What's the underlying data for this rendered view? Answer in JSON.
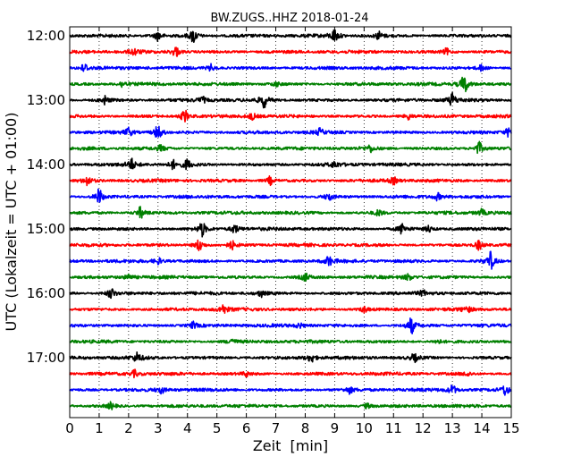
{
  "chart_data": {
    "type": "line",
    "title": "BW.ZUGS..HHZ 2018-01-24",
    "xlabel": "Zeit  [min]",
    "ylabel": "UTC (Lokalzeit = UTC + 01:00)",
    "xlim": [
      0,
      15
    ],
    "x_ticks": [
      "0",
      "1",
      "2",
      "3",
      "4",
      "5",
      "6",
      "7",
      "8",
      "9",
      "10",
      "11",
      "12",
      "13",
      "14",
      "15"
    ],
    "y_tick_labels": [
      "12:00",
      "13:00",
      "14:00",
      "15:00",
      "16:00",
      "17:00"
    ],
    "grid": "vertical dotted",
    "colors": [
      "#000000",
      "#ff0000",
      "#0000ff",
      "#008000"
    ],
    "traces": [
      {
        "start": "12:00",
        "color": "#000000",
        "events": [
          [
            4.2,
            1.0
          ],
          [
            9.0,
            0.8
          ],
          [
            3.0,
            0.6
          ],
          [
            10.5,
            0.5
          ]
        ]
      },
      {
        "start": "12:15",
        "color": "#ff0000",
        "events": [
          [
            3.6,
            0.7
          ],
          [
            2.2,
            0.4
          ],
          [
            12.8,
            0.4
          ]
        ]
      },
      {
        "start": "12:30",
        "color": "#0000ff",
        "events": [
          [
            0.5,
            0.6
          ],
          [
            4.8,
            0.4
          ],
          [
            14.0,
            0.4
          ]
        ]
      },
      {
        "start": "12:45",
        "color": "#008000",
        "events": [
          [
            13.4,
            1.3
          ],
          [
            1.8,
            0.4
          ],
          [
            7.0,
            0.3
          ]
        ]
      },
      {
        "start": "13:00",
        "color": "#000000",
        "events": [
          [
            6.6,
            0.9
          ],
          [
            13.0,
            0.8
          ],
          [
            1.2,
            0.5
          ],
          [
            4.5,
            0.4
          ]
        ]
      },
      {
        "start": "13:15",
        "color": "#ff0000",
        "events": [
          [
            3.9,
            0.8
          ],
          [
            6.2,
            0.4
          ],
          [
            11.5,
            0.4
          ]
        ]
      },
      {
        "start": "13:30",
        "color": "#0000ff",
        "events": [
          [
            3.0,
            1.1
          ],
          [
            2.0,
            0.6
          ],
          [
            8.5,
            0.4
          ],
          [
            14.9,
            0.5
          ]
        ]
      },
      {
        "start": "13:45",
        "color": "#008000",
        "events": [
          [
            13.9,
            0.8
          ],
          [
            3.1,
            0.4
          ],
          [
            10.2,
            0.4
          ]
        ]
      },
      {
        "start": "14:00",
        "color": "#000000",
        "events": [
          [
            2.1,
            0.7
          ],
          [
            4.0,
            0.6
          ],
          [
            3.5,
            0.5
          ],
          [
            9.0,
            0.4
          ]
        ]
      },
      {
        "start": "14:15",
        "color": "#ff0000",
        "events": [
          [
            0.6,
            0.6
          ],
          [
            6.8,
            0.5
          ],
          [
            11.0,
            0.4
          ]
        ]
      },
      {
        "start": "14:30",
        "color": "#0000ff",
        "events": [
          [
            1.0,
            1.0
          ],
          [
            8.8,
            0.5
          ],
          [
            12.5,
            0.4
          ]
        ]
      },
      {
        "start": "14:45",
        "color": "#008000",
        "events": [
          [
            2.4,
            0.7
          ],
          [
            10.5,
            0.4
          ],
          [
            14.0,
            0.4
          ]
        ]
      },
      {
        "start": "15:00",
        "color": "#000000",
        "events": [
          [
            4.5,
            0.9
          ],
          [
            5.6,
            0.6
          ],
          [
            11.3,
            0.7
          ],
          [
            12.2,
            0.4
          ]
        ]
      },
      {
        "start": "15:15",
        "color": "#ff0000",
        "events": [
          [
            4.4,
            0.8
          ],
          [
            5.5,
            0.5
          ],
          [
            13.9,
            0.6
          ]
        ]
      },
      {
        "start": "15:30",
        "color": "#0000ff",
        "events": [
          [
            14.3,
            1.1
          ],
          [
            8.8,
            0.6
          ],
          [
            3.0,
            0.4
          ]
        ]
      },
      {
        "start": "15:45",
        "color": "#008000",
        "events": [
          [
            8.0,
            0.5
          ],
          [
            2.0,
            0.4
          ],
          [
            11.5,
            0.4
          ]
        ]
      },
      {
        "start": "16:00",
        "color": "#000000",
        "events": [
          [
            1.4,
            0.7
          ],
          [
            6.5,
            0.4
          ],
          [
            12.0,
            0.3
          ]
        ]
      },
      {
        "start": "16:15",
        "color": "#ff0000",
        "events": [
          [
            5.2,
            0.6
          ],
          [
            10.0,
            0.4
          ],
          [
            13.5,
            0.4
          ]
        ]
      },
      {
        "start": "16:30",
        "color": "#0000ff",
        "events": [
          [
            11.6,
            1.0
          ],
          [
            4.2,
            0.4
          ],
          [
            7.8,
            0.3
          ]
        ]
      },
      {
        "start": "16:45",
        "color": "#008000",
        "events": [
          [
            5.5,
            0.4
          ],
          [
            12.5,
            0.3
          ]
        ]
      },
      {
        "start": "17:00",
        "color": "#000000",
        "events": [
          [
            2.3,
            0.6
          ],
          [
            8.2,
            0.6
          ],
          [
            11.7,
            0.5
          ]
        ]
      },
      {
        "start": "17:15",
        "color": "#ff0000",
        "events": [
          [
            2.2,
            0.4
          ],
          [
            6.0,
            0.3
          ],
          [
            13.5,
            0.3
          ]
        ]
      },
      {
        "start": "17:30",
        "color": "#0000ff",
        "events": [
          [
            14.8,
            0.7
          ],
          [
            13.0,
            0.6
          ],
          [
            3.1,
            0.4
          ],
          [
            9.5,
            0.4
          ]
        ]
      },
      {
        "start": "17:45",
        "color": "#008000",
        "events": [
          [
            1.4,
            0.4
          ],
          [
            10.1,
            0.3
          ]
        ]
      }
    ]
  }
}
